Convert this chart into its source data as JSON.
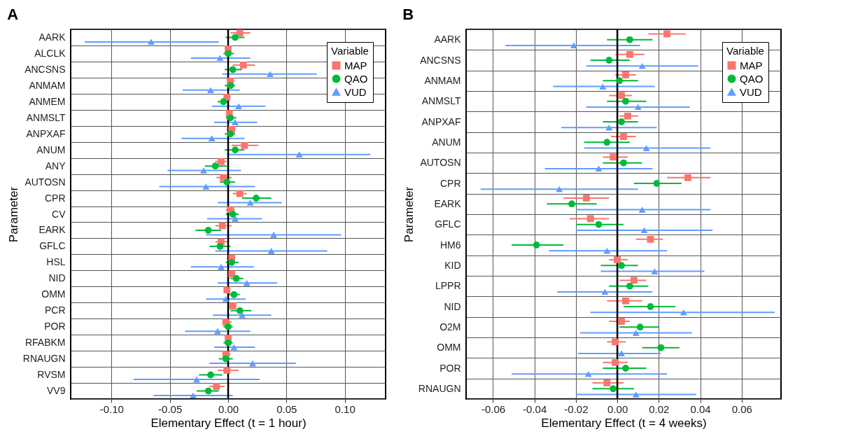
{
  "chart_data": [
    {
      "type": "scatter",
      "title": "A",
      "orientation": "horizontal",
      "xlabel": "Elementary Effect (t = 1 hour)",
      "ylabel": "Parameter",
      "legend_title": "Variable",
      "legend": "top right",
      "grid": true,
      "categories": [
        "AARK",
        "ALCLK",
        "ANCSNS",
        "ANMAM",
        "ANMEM",
        "ANMSLT",
        "ANPXAF",
        "ANUM",
        "ANY",
        "AUTOSN",
        "CPR",
        "CV",
        "EARK",
        "GFLC",
        "HSL",
        "NID",
        "OMM",
        "PCR",
        "POR",
        "RFABKM",
        "RNAUGN",
        "RVSM",
        "VV9"
      ],
      "xlim": [
        -0.135,
        0.135
      ],
      "xticks": [
        {
          "value": -0.1,
          "label": "-0.10"
        },
        {
          "value": -0.05,
          "label": "-0.05"
        },
        {
          "value": 0,
          "label": "0.00"
        },
        {
          "value": 0.05,
          "label": "0.05"
        },
        {
          "value": 0.1,
          "label": "0.10"
        }
      ],
      "ref_lines": [
        {
          "axis": "x",
          "value": 0,
          "color": "#000000"
        }
      ],
      "series": [
        {
          "name": "MAP",
          "color": "#f8766d",
          "marker": "square",
          "values": [
            0.01,
            0.0,
            0.013,
            0.002,
            -0.001,
            0.001,
            0.003,
            0.014,
            -0.006,
            -0.004,
            0.01,
            0.002,
            -0.005,
            -0.006,
            0.003,
            0.003,
            -0.001,
            0.004,
            -0.002,
            0.0,
            -0.002,
            -0.001,
            -0.01
          ],
          "errors": [
            [
              0.002,
              0.019
            ],
            [
              -0.002,
              0.002
            ],
            [
              0.004,
              0.023
            ],
            [
              0.0,
              0.005
            ],
            [
              -0.003,
              0.002
            ],
            [
              -0.001,
              0.003
            ],
            [
              -0.001,
              0.006
            ],
            [
              0.003,
              0.026
            ],
            [
              -0.011,
              -0.001
            ],
            [
              -0.01,
              0.003
            ],
            [
              0.004,
              0.016
            ],
            [
              -0.002,
              0.006
            ],
            [
              -0.011,
              0.003
            ],
            [
              -0.011,
              0.0
            ],
            [
              -0.001,
              0.006
            ],
            [
              0.0,
              0.006
            ],
            [
              -0.003,
              0.001
            ],
            [
              0.0,
              0.007
            ],
            [
              -0.005,
              0.003
            ],
            [
              -0.002,
              0.003
            ],
            [
              -0.005,
              0.002
            ],
            [
              -0.009,
              0.009
            ],
            [
              -0.016,
              -0.003
            ]
          ]
        },
        {
          "name": "QAO",
          "color": "#00ba38",
          "marker": "circle",
          "values": [
            0.006,
            0.0,
            0.004,
            0.002,
            -0.004,
            0.002,
            0.002,
            0.006,
            -0.011,
            -0.001,
            0.024,
            0.004,
            -0.017,
            -0.007,
            0.003,
            0.007,
            0.005,
            0.01,
            0.0,
            0.0,
            -0.002,
            -0.015,
            -0.017
          ],
          "errors": [
            [
              -0.002,
              0.014
            ],
            [
              -0.004,
              0.005
            ],
            [
              -0.003,
              0.012
            ],
            [
              -0.003,
              0.006
            ],
            [
              -0.009,
              0.0
            ],
            [
              -0.002,
              0.007
            ],
            [
              -0.003,
              0.006
            ],
            [
              -0.003,
              0.014
            ],
            [
              -0.02,
              -0.001
            ],
            [
              -0.007,
              0.006
            ],
            [
              0.012,
              0.037
            ],
            [
              -0.002,
              0.009
            ],
            [
              -0.028,
              -0.006
            ],
            [
              -0.016,
              0.002
            ],
            [
              -0.002,
              0.009
            ],
            [
              0.002,
              0.013
            ],
            [
              0.0,
              0.01
            ],
            [
              0.002,
              0.02
            ],
            [
              -0.004,
              0.004
            ],
            [
              -0.004,
              0.004
            ],
            [
              -0.008,
              0.004
            ],
            [
              -0.025,
              -0.005
            ],
            [
              -0.027,
              -0.008
            ]
          ]
        },
        {
          "name": "VUD",
          "color": "#619cff",
          "marker": "triangle",
          "values": [
            -0.066,
            -0.007,
            0.036,
            -0.015,
            0.009,
            0.006,
            -0.014,
            0.061,
            -0.021,
            -0.019,
            0.019,
            0.006,
            0.039,
            0.037,
            -0.006,
            0.016,
            -0.002,
            0.012,
            -0.009,
            0.005,
            0.021,
            -0.027,
            -0.03
          ],
          "errors": [
            [
              -0.123,
              -0.008
            ],
            [
              -0.032,
              0.019
            ],
            [
              -0.005,
              0.076
            ],
            [
              -0.039,
              0.01
            ],
            [
              -0.014,
              0.032
            ],
            [
              -0.012,
              0.025
            ],
            [
              -0.04,
              0.014
            ],
            [
              -0.001,
              0.122
            ],
            [
              -0.052,
              0.011
            ],
            [
              -0.059,
              0.023
            ],
            [
              -0.009,
              0.046
            ],
            [
              -0.018,
              0.029
            ],
            [
              -0.019,
              0.097
            ],
            [
              -0.011,
              0.085
            ],
            [
              -0.032,
              0.022
            ],
            [
              -0.009,
              0.042
            ],
            [
              -0.019,
              0.015
            ],
            [
              -0.013,
              0.037
            ],
            [
              -0.037,
              0.019
            ],
            [
              -0.012,
              0.023
            ],
            [
              -0.016,
              0.058
            ],
            [
              -0.081,
              0.027
            ],
            [
              -0.064,
              0.004
            ]
          ]
        }
      ]
    },
    {
      "type": "scatter",
      "title": "B",
      "orientation": "horizontal",
      "xlabel": "Elementary Effect (t = 4 weeks)",
      "ylabel": "Parameter",
      "legend_title": "Variable",
      "legend": "top right",
      "grid": true,
      "categories": [
        "AARK",
        "ANCSNS",
        "ANMAM",
        "ANMSLT",
        "ANPXAF",
        "ANUM",
        "AUTOSN",
        "CPR",
        "EARK",
        "GFLC",
        "HM6",
        "KID",
        "LPPR",
        "NID",
        "O2M",
        "OMM",
        "POR",
        "RNAUGN"
      ],
      "xlim": [
        -0.073,
        0.079
      ],
      "xticks": [
        {
          "value": -0.06,
          "label": "-0.06"
        },
        {
          "value": -0.04,
          "label": "-0.04"
        },
        {
          "value": -0.02,
          "label": "-0.02"
        },
        {
          "value": 0,
          "label": "0.00"
        },
        {
          "value": 0.02,
          "label": "0.02"
        },
        {
          "value": 0.04,
          "label": "0.04"
        },
        {
          "value": 0.06,
          "label": "0.06"
        }
      ],
      "ref_lines": [
        {
          "axis": "x",
          "value": 0,
          "color": "#000000"
        }
      ],
      "series": [
        {
          "name": "MAP",
          "color": "#f8766d",
          "marker": "square",
          "values": [
            0.024,
            0.006,
            0.004,
            0.002,
            0.005,
            0.003,
            -0.002,
            0.034,
            -0.015,
            -0.013,
            0.016,
            0.0,
            0.008,
            0.004,
            0.002,
            -0.001,
            -0.001,
            -0.005
          ],
          "errors": [
            [
              0.015,
              0.033
            ],
            [
              -0.001,
              0.013
            ],
            [
              -0.001,
              0.009
            ],
            [
              -0.004,
              0.007
            ],
            [
              0.001,
              0.01
            ],
            [
              -0.003,
              0.009
            ],
            [
              -0.007,
              0.005
            ],
            [
              0.024,
              0.045
            ],
            [
              -0.026,
              -0.004
            ],
            [
              -0.023,
              -0.004
            ],
            [
              0.009,
              0.022
            ],
            [
              -0.004,
              0.005
            ],
            [
              0.001,
              0.014
            ],
            [
              -0.005,
              0.012
            ],
            [
              -0.004,
              0.006
            ],
            [
              -0.005,
              0.004
            ],
            [
              -0.007,
              0.005
            ],
            [
              -0.012,
              0.003
            ]
          ]
        },
        {
          "name": "QAO",
          "color": "#00ba38",
          "marker": "circle",
          "values": [
            0.006,
            -0.004,
            0.001,
            0.004,
            0.002,
            -0.005,
            0.003,
            0.019,
            -0.022,
            -0.009,
            -0.039,
            0.002,
            0.006,
            0.016,
            0.011,
            0.021,
            0.004,
            -0.002
          ],
          "errors": [
            [
              -0.005,
              0.017
            ],
            [
              -0.013,
              0.006
            ],
            [
              -0.007,
              0.01
            ],
            [
              -0.005,
              0.014
            ],
            [
              -0.007,
              0.01
            ],
            [
              -0.016,
              0.006
            ],
            [
              -0.007,
              0.012
            ],
            [
              0.008,
              0.031
            ],
            [
              -0.034,
              -0.01
            ],
            [
              -0.02,
              0.003
            ],
            [
              -0.051,
              -0.026
            ],
            [
              -0.008,
              0.01
            ],
            [
              -0.004,
              0.015
            ],
            [
              0.003,
              0.028
            ],
            [
              0.001,
              0.02
            ],
            [
              0.012,
              0.03
            ],
            [
              -0.007,
              0.014
            ],
            [
              -0.012,
              0.008
            ]
          ]
        },
        {
          "name": "VUD",
          "color": "#619cff",
          "marker": "triangle",
          "values": [
            -0.021,
            0.012,
            -0.007,
            0.01,
            -0.004,
            0.014,
            -0.009,
            -0.028,
            0.012,
            0.013,
            -0.005,
            0.018,
            -0.006,
            0.032,
            0.009,
            0.002,
            -0.014,
            0.009
          ],
          "errors": [
            [
              -0.054,
              0.011
            ],
            [
              -0.015,
              0.039
            ],
            [
              -0.031,
              0.018
            ],
            [
              -0.015,
              0.035
            ],
            [
              -0.027,
              0.019
            ],
            [
              -0.016,
              0.045
            ],
            [
              -0.035,
              0.017
            ],
            [
              -0.066,
              0.01
            ],
            [
              -0.02,
              0.045
            ],
            [
              -0.02,
              0.046
            ],
            [
              -0.033,
              0.024
            ],
            [
              -0.008,
              0.042
            ],
            [
              -0.029,
              0.017
            ],
            [
              -0.013,
              0.076
            ],
            [
              -0.018,
              0.036
            ],
            [
              -0.019,
              0.021
            ],
            [
              -0.051,
              0.024
            ],
            [
              -0.02,
              0.038
            ]
          ]
        }
      ]
    }
  ]
}
